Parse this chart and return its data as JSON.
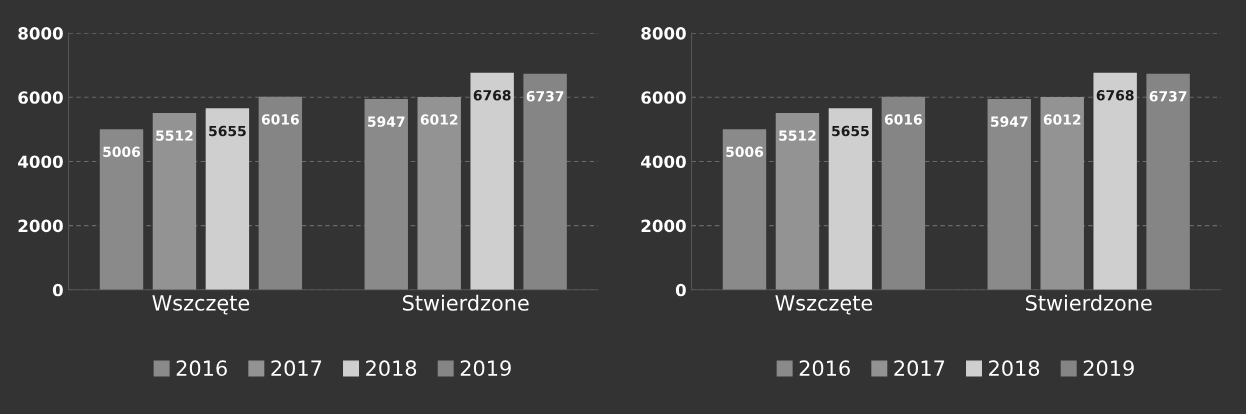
{
  "chart_data": [
    {
      "type": "bar",
      "categories": [
        "Wszczęte",
        "Stwierdzone"
      ],
      "ylim": [
        0,
        8000
      ],
      "yticks": [
        0,
        2000,
        4000,
        6000,
        8000
      ],
      "grid": "y",
      "legend": "bottom",
      "data_labels": true,
      "series": [
        {
          "name": "2016",
          "color": "#8a8a8a",
          "values": [
            5006,
            5947
          ]
        },
        {
          "name": "2017",
          "color": "#939393",
          "values": [
            5512,
            6012
          ]
        },
        {
          "name": "2018",
          "color": "#cfcfcf",
          "values": [
            5655,
            6768
          ]
        },
        {
          "name": "2019",
          "color": "#858585",
          "values": [
            6016,
            6737
          ]
        }
      ]
    },
    {
      "type": "bar",
      "categories": [
        "Wszczęte",
        "Stwierdzone"
      ],
      "ylim": [
        0,
        8000
      ],
      "yticks": [
        0,
        2000,
        4000,
        6000,
        8000
      ],
      "grid": "y",
      "legend": "bottom",
      "data_labels": true,
      "series": [
        {
          "name": "2016",
          "color": "#8a8a8a",
          "values": [
            5006,
            5947
          ]
        },
        {
          "name": "2017",
          "color": "#939393",
          "values": [
            5512,
            6012
          ]
        },
        {
          "name": "2018",
          "color": "#cfcfcf",
          "values": [
            5655,
            6768
          ]
        },
        {
          "name": "2019",
          "color": "#858585",
          "values": [
            6016,
            6737
          ]
        }
      ]
    }
  ]
}
